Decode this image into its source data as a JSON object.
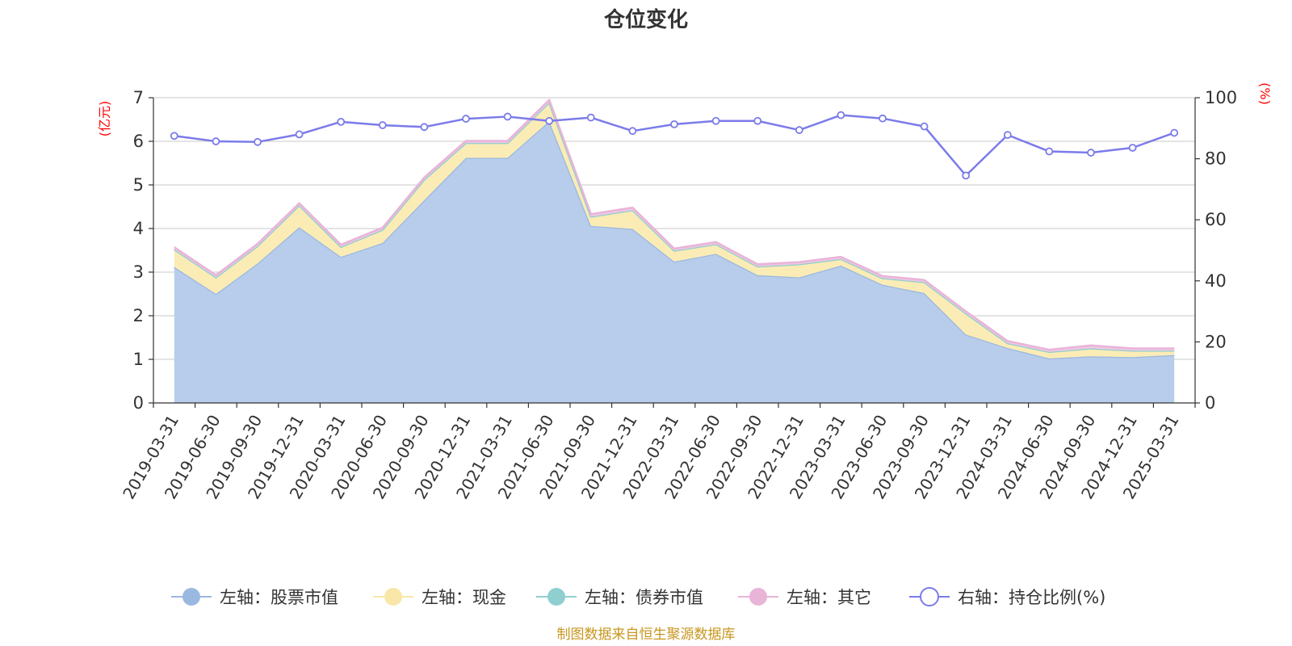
{
  "chart_data": {
    "type": "area",
    "title": "仓位变化",
    "left_axis_unit": "(亿元)",
    "right_axis_unit": "(%)",
    "left_ylim": [
      0,
      7
    ],
    "left_yticks": [
      "0",
      "1",
      "2",
      "3",
      "4",
      "5",
      "6",
      "7"
    ],
    "right_ylim": [
      0,
      100
    ],
    "right_yticks": [
      "0",
      "20",
      "40",
      "60",
      "80",
      "100"
    ],
    "categories": [
      "2019-03-31",
      "2019-06-30",
      "2019-09-30",
      "2019-12-31",
      "2020-03-31",
      "2020-06-30",
      "2020-09-30",
      "2020-12-31",
      "2021-03-31",
      "2021-06-30",
      "2021-09-30",
      "2021-12-31",
      "2022-03-31",
      "2022-06-30",
      "2022-09-30",
      "2022-12-31",
      "2023-03-31",
      "2023-06-30",
      "2023-09-30",
      "2023-12-31",
      "2024-03-31",
      "2024-06-30",
      "2024-09-30",
      "2024-12-31",
      "2025-03-31"
    ],
    "series": [
      {
        "name": "左轴：股票市值",
        "axis": "left",
        "stacked": true,
        "color": "#9ab8e0",
        "fill": "#b8cdeb",
        "values": [
          3.12,
          2.5,
          3.2,
          4.03,
          3.35,
          3.67,
          4.65,
          5.62,
          5.62,
          6.46,
          4.06,
          3.99,
          3.24,
          3.42,
          2.93,
          2.88,
          3.15,
          2.71,
          2.52,
          1.57,
          1.26,
          1.02,
          1.07,
          1.05,
          1.1
        ]
      },
      {
        "name": "左轴：现金",
        "axis": "left",
        "stacked": true,
        "color": "#f8e7a8",
        "fill": "#fbecb5",
        "values": [
          0.4,
          0.38,
          0.4,
          0.5,
          0.23,
          0.3,
          0.47,
          0.34,
          0.34,
          0.43,
          0.21,
          0.43,
          0.25,
          0.22,
          0.2,
          0.3,
          0.15,
          0.15,
          0.25,
          0.48,
          0.11,
          0.15,
          0.18,
          0.15,
          0.1
        ]
      },
      {
        "name": "左轴：债券市值",
        "axis": "left",
        "stacked": true,
        "color": "#8fcfcf",
        "fill": "#a8dada",
        "values": [
          0,
          0,
          0,
          0,
          0,
          0,
          0,
          0,
          0,
          0,
          0,
          0,
          0,
          0,
          0,
          0,
          0,
          0,
          0,
          0,
          0,
          0,
          0,
          0,
          0
        ]
      },
      {
        "name": "左轴：其它",
        "axis": "left",
        "stacked": true,
        "color": "#e8b4d8",
        "fill": "#f0c8e2",
        "values": [
          0.05,
          0.05,
          0.05,
          0.05,
          0.05,
          0.05,
          0.05,
          0.05,
          0.05,
          0.06,
          0.06,
          0.06,
          0.05,
          0.05,
          0.05,
          0.05,
          0.05,
          0.05,
          0.05,
          0.05,
          0.05,
          0.05,
          0.07,
          0.05,
          0.05
        ]
      },
      {
        "name": "右轴：持仓比例(%)",
        "axis": "right",
        "type": "line",
        "color": "#7b7bea",
        "values": [
          87.5,
          85.7,
          85.5,
          88.0,
          92.1,
          91.0,
          90.4,
          93.1,
          93.8,
          92.4,
          93.5,
          89.1,
          91.3,
          92.4,
          92.4,
          89.4,
          94.3,
          93.2,
          90.6,
          74.5,
          87.8,
          82.4,
          82.0,
          83.6,
          88.5
        ]
      }
    ],
    "legend_position": "bottom",
    "grid": true
  },
  "footer": {
    "source": "制图数据来自恒生聚源数据库"
  }
}
